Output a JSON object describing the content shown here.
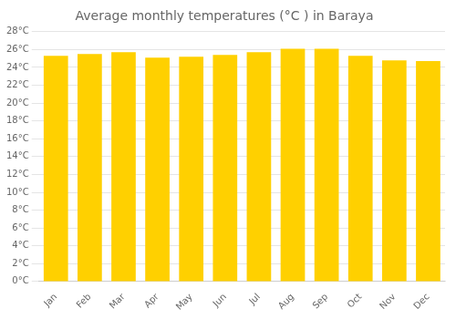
{
  "chart_data": {
    "type": "bar",
    "title": "Average monthly temperatures (°C ) in Baraya",
    "categories": [
      "Jan",
      "Feb",
      "Mar",
      "Apr",
      "May",
      "Jun",
      "Jul",
      "Aug",
      "Sep",
      "Oct",
      "Nov",
      "Dec"
    ],
    "values": [
      25.3,
      25.5,
      25.7,
      25.1,
      25.2,
      25.4,
      25.7,
      26.1,
      26.1,
      25.3,
      24.8,
      24.7
    ],
    "color": "#FFD000",
    "ylim": [
      0,
      28
    ],
    "yticks": [
      {
        "value": 0,
        "label": "0°C"
      },
      {
        "value": 2,
        "label": "2°C"
      },
      {
        "value": 4,
        "label": "4°C"
      },
      {
        "value": 6,
        "label": "6°C"
      },
      {
        "value": 8,
        "label": "8°C"
      },
      {
        "value": 10,
        "label": "10°C"
      },
      {
        "value": 12,
        "label": "12°C"
      },
      {
        "value": 14,
        "label": "14°C"
      },
      {
        "value": 16,
        "label": "16°C"
      },
      {
        "value": 18,
        "label": "18°C"
      },
      {
        "value": 20,
        "label": "20°C"
      },
      {
        "value": 22,
        "label": "22°C"
      },
      {
        "value": 24,
        "label": "24°C"
      },
      {
        "value": 26,
        "label": "26°C"
      },
      {
        "value": 28,
        "label": "28°C"
      }
    ],
    "grid": true
  }
}
